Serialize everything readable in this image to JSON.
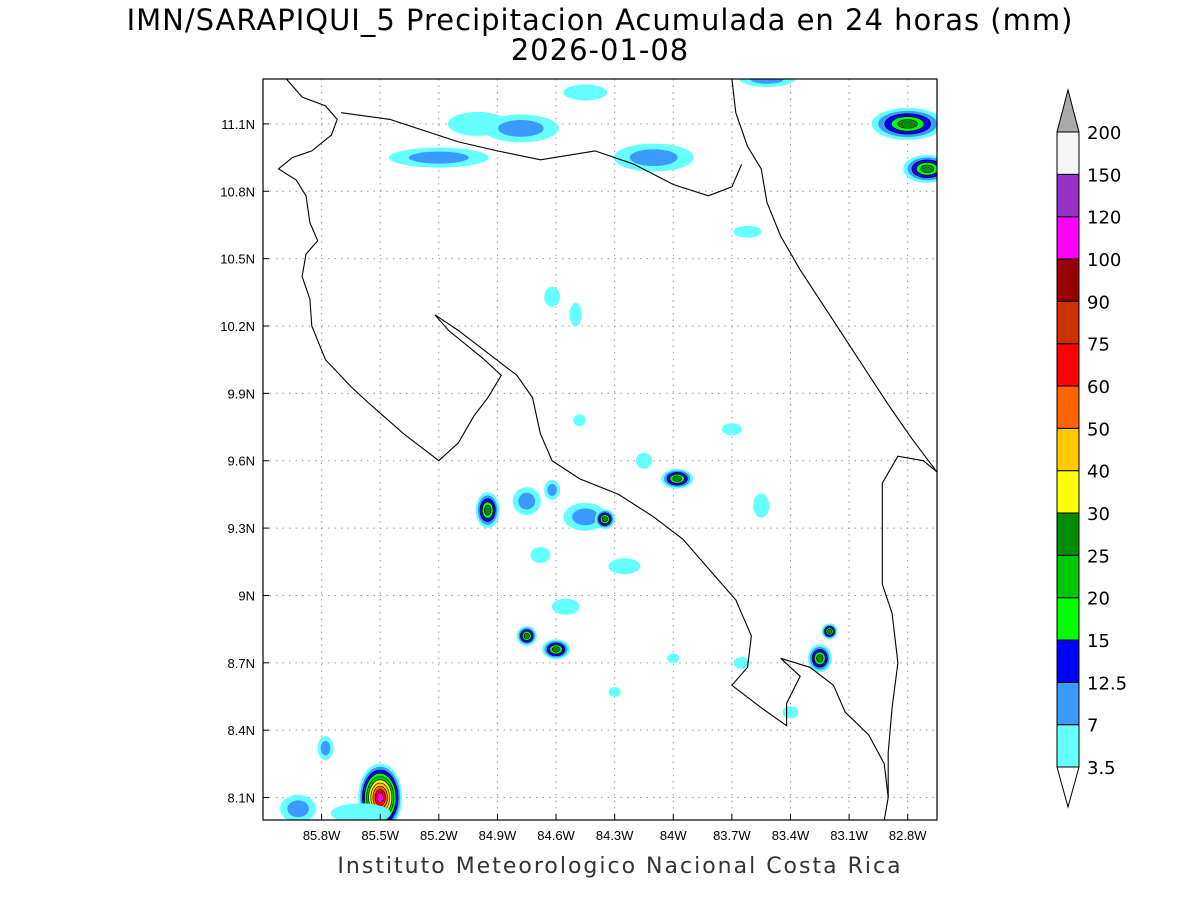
{
  "title": {
    "line1": "IMN/SARAPIQUI_5 Precipitacion Acumulada en 24 horas (mm)",
    "line2": "2026-01-08"
  },
  "footer": "Instituto Meteorologico Nacional Costa Rica",
  "map": {
    "lon_range": [
      -86.1,
      -82.65
    ],
    "lat_range": [
      8.0,
      11.3
    ],
    "grid": "dotted",
    "lat_ticks": [
      {
        "value": 11.1,
        "label": "11.1N"
      },
      {
        "value": 10.8,
        "label": "10.8N"
      },
      {
        "value": 10.5,
        "label": "10.5N"
      },
      {
        "value": 10.2,
        "label": "10.2N"
      },
      {
        "value": 9.9,
        "label": "9.9N"
      },
      {
        "value": 9.6,
        "label": "9.6N"
      },
      {
        "value": 9.3,
        "label": "9.3N"
      },
      {
        "value": 9.0,
        "label": "9N"
      },
      {
        "value": 8.7,
        "label": "8.7N"
      },
      {
        "value": 8.4,
        "label": "8.4N"
      },
      {
        "value": 8.1,
        "label": "8.1N"
      }
    ],
    "lon_ticks": [
      {
        "value": -85.8,
        "label": "85.8W"
      },
      {
        "value": -85.5,
        "label": "85.5W"
      },
      {
        "value": -85.2,
        "label": "85.2W"
      },
      {
        "value": -84.9,
        "label": "84.9W"
      },
      {
        "value": -84.6,
        "label": "84.6W"
      },
      {
        "value": -84.3,
        "label": "84.3W"
      },
      {
        "value": -84.0,
        "label": "84W"
      },
      {
        "value": -83.7,
        "label": "83.7W"
      },
      {
        "value": -83.4,
        "label": "83.4W"
      },
      {
        "value": -83.1,
        "label": "83.1W"
      },
      {
        "value": -82.8,
        "label": "82.8W"
      }
    ],
    "coastline": [
      [
        -85.98,
        11.3
      ],
      [
        -85.9,
        11.22
      ],
      [
        -85.78,
        11.18
      ],
      [
        -85.72,
        11.12
      ],
      [
        -85.75,
        11.05
      ],
      [
        -85.85,
        10.98
      ],
      [
        -85.95,
        10.95
      ],
      [
        -86.02,
        10.9
      ],
      [
        -85.93,
        10.85
      ],
      [
        -85.88,
        10.78
      ],
      [
        -85.86,
        10.66
      ],
      [
        -85.82,
        10.58
      ],
      [
        -85.88,
        10.52
      ],
      [
        -85.9,
        10.42
      ],
      [
        -85.86,
        10.32
      ],
      [
        -85.85,
        10.2
      ],
      [
        -85.78,
        10.05
      ],
      [
        -85.65,
        9.93
      ],
      [
        -85.55,
        9.85
      ],
      [
        -85.38,
        9.72
      ],
      [
        -85.2,
        9.6
      ],
      [
        -85.1,
        9.68
      ],
      [
        -85.02,
        9.8
      ],
      [
        -84.95,
        9.88
      ],
      [
        -84.88,
        9.98
      ],
      [
        -84.98,
        10.06
      ],
      [
        -85.15,
        10.18
      ],
      [
        -85.22,
        10.25
      ],
      [
        -85.1,
        10.18
      ],
      [
        -84.95,
        10.08
      ],
      [
        -84.8,
        9.98
      ],
      [
        -84.72,
        9.88
      ],
      [
        -84.68,
        9.72
      ],
      [
        -84.62,
        9.6
      ],
      [
        -84.48,
        9.52
      ],
      [
        -84.28,
        9.45
      ],
      [
        -84.1,
        9.35
      ],
      [
        -83.95,
        9.25
      ],
      [
        -83.8,
        9.1
      ],
      [
        -83.68,
        8.98
      ],
      [
        -83.6,
        8.82
      ],
      [
        -83.62,
        8.68
      ],
      [
        -83.7,
        8.6
      ],
      [
        -83.55,
        8.5
      ],
      [
        -83.42,
        8.42
      ],
      [
        -83.42,
        8.52
      ],
      [
        -83.35,
        8.64
      ],
      [
        -83.45,
        8.72
      ],
      [
        -83.3,
        8.68
      ],
      [
        -83.18,
        8.6
      ],
      [
        -83.12,
        8.48
      ],
      [
        -83.0,
        8.38
      ],
      [
        -82.92,
        8.25
      ],
      [
        -82.9,
        8.1
      ],
      [
        -82.92,
        8.0
      ]
    ],
    "caribbean_coast": [
      [
        -83.7,
        11.3
      ],
      [
        -83.68,
        11.15
      ],
      [
        -83.62,
        11.0
      ],
      [
        -83.55,
        10.9
      ],
      [
        -83.52,
        10.75
      ],
      [
        -83.45,
        10.6
      ],
      [
        -83.35,
        10.45
      ],
      [
        -83.2,
        10.25
      ],
      [
        -83.05,
        10.05
      ],
      [
        -82.9,
        9.85
      ],
      [
        -82.78,
        9.7
      ],
      [
        -82.65,
        9.55
      ]
    ],
    "north_border": [
      [
        -85.7,
        11.15
      ],
      [
        -85.45,
        11.12
      ],
      [
        -85.1,
        11.02
      ],
      [
        -84.9,
        10.98
      ],
      [
        -84.68,
        10.94
      ],
      [
        -84.4,
        10.98
      ],
      [
        -84.2,
        10.92
      ],
      [
        -84.0,
        10.83
      ],
      [
        -83.82,
        10.78
      ],
      [
        -83.7,
        10.82
      ],
      [
        -83.65,
        10.92
      ]
    ],
    "panama_border": [
      [
        -82.65,
        9.55
      ],
      [
        -82.72,
        9.6
      ],
      [
        -82.85,
        9.62
      ],
      [
        -82.93,
        9.5
      ],
      [
        -82.93,
        9.25
      ],
      [
        -82.93,
        9.05
      ],
      [
        -82.88,
        8.92
      ],
      [
        -82.85,
        8.7
      ],
      [
        -82.88,
        8.5
      ],
      [
        -82.9,
        8.3
      ],
      [
        -82.9,
        8.1
      ]
    ],
    "rain_cells": [
      {
        "lon": -85.5,
        "lat": 8.1,
        "rx": 22,
        "ry": 34,
        "level": "heavy"
      },
      {
        "lon": -85.92,
        "lat": 8.05,
        "rx": 18,
        "ry": 14,
        "level": "med"
      },
      {
        "lon": -85.78,
        "lat": 8.32,
        "rx": 8,
        "ry": 12,
        "level": "med"
      },
      {
        "lon": -85.6,
        "lat": 8.03,
        "rx": 30,
        "ry": 10,
        "level": "light"
      },
      {
        "lon": -84.95,
        "lat": 9.38,
        "rx": 12,
        "ry": 18,
        "level": "strong"
      },
      {
        "lon": -84.75,
        "lat": 9.42,
        "rx": 14,
        "ry": 14,
        "level": "med"
      },
      {
        "lon": -84.62,
        "lat": 9.47,
        "rx": 8,
        "ry": 10,
        "level": "med"
      },
      {
        "lon": -84.45,
        "lat": 9.35,
        "rx": 22,
        "ry": 14,
        "level": "med"
      },
      {
        "lon": -84.35,
        "lat": 9.34,
        "rx": 10,
        "ry": 10,
        "level": "strong"
      },
      {
        "lon": -83.98,
        "lat": 9.52,
        "rx": 16,
        "ry": 10,
        "level": "strong"
      },
      {
        "lon": -84.15,
        "lat": 9.6,
        "rx": 8,
        "ry": 8,
        "level": "light"
      },
      {
        "lon": -84.75,
        "lat": 8.82,
        "rx": 10,
        "ry": 10,
        "level": "strong"
      },
      {
        "lon": -84.6,
        "lat": 8.76,
        "rx": 14,
        "ry": 10,
        "level": "strong"
      },
      {
        "lon": -84.55,
        "lat": 8.95,
        "rx": 14,
        "ry": 8,
        "level": "light"
      },
      {
        "lon": -84.68,
        "lat": 9.18,
        "rx": 10,
        "ry": 8,
        "level": "light"
      },
      {
        "lon": -84.25,
        "lat": 9.13,
        "rx": 16,
        "ry": 8,
        "level": "light"
      },
      {
        "lon": -83.25,
        "lat": 8.72,
        "rx": 12,
        "ry": 14,
        "level": "strong"
      },
      {
        "lon": -83.2,
        "lat": 8.84,
        "rx": 8,
        "ry": 8,
        "level": "strong"
      },
      {
        "lon": -83.55,
        "lat": 9.4,
        "rx": 8,
        "ry": 12,
        "level": "light"
      },
      {
        "lon": -83.7,
        "lat": 9.74,
        "rx": 10,
        "ry": 6,
        "level": "light"
      },
      {
        "lon": -84.48,
        "lat": 9.78,
        "rx": 6,
        "ry": 6,
        "level": "light"
      },
      {
        "lon": -84.62,
        "lat": 10.33,
        "rx": 8,
        "ry": 10,
        "level": "light"
      },
      {
        "lon": -84.5,
        "lat": 10.25,
        "rx": 6,
        "ry": 12,
        "level": "light"
      },
      {
        "lon": -83.62,
        "lat": 10.62,
        "rx": 14,
        "ry": 6,
        "level": "light"
      },
      {
        "lon": -85.0,
        "lat": 11.1,
        "rx": 30,
        "ry": 12,
        "level": "light"
      },
      {
        "lon": -84.78,
        "lat": 11.08,
        "rx": 38,
        "ry": 14,
        "level": "med"
      },
      {
        "lon": -85.2,
        "lat": 10.95,
        "rx": 50,
        "ry": 10,
        "level": "med"
      },
      {
        "lon": -84.1,
        "lat": 10.95,
        "rx": 40,
        "ry": 14,
        "level": "med"
      },
      {
        "lon": -84.45,
        "lat": 11.24,
        "rx": 22,
        "ry": 8,
        "level": "light"
      },
      {
        "lon": -83.52,
        "lat": 11.3,
        "rx": 28,
        "ry": 8,
        "level": "med"
      },
      {
        "lon": -82.8,
        "lat": 11.1,
        "rx": 36,
        "ry": 16,
        "level": "strong"
      },
      {
        "lon": -82.7,
        "lat": 10.9,
        "rx": 24,
        "ry": 14,
        "level": "strong"
      },
      {
        "lon": -83.65,
        "lat": 8.7,
        "rx": 8,
        "ry": 6,
        "level": "light"
      },
      {
        "lon": -83.4,
        "lat": 8.48,
        "rx": 8,
        "ry": 6,
        "level": "light"
      },
      {
        "lon": -84.3,
        "lat": 8.57,
        "rx": 6,
        "ry": 5,
        "level": "light"
      },
      {
        "lon": -84.0,
        "lat": 8.72,
        "rx": 6,
        "ry": 5,
        "level": "light"
      }
    ]
  },
  "colorbar": {
    "levels": [
      {
        "label": "3.5",
        "color": "#66ffff"
      },
      {
        "label": "7",
        "color": "#3a9aff"
      },
      {
        "label": "12.5",
        "color": "#0000ff"
      },
      {
        "label": "15",
        "color": "#00ff00"
      },
      {
        "label": "20",
        "color": "#00c800"
      },
      {
        "label": "25",
        "color": "#008c00"
      },
      {
        "label": "30",
        "color": "#ffff00"
      },
      {
        "label": "40",
        "color": "#ffc800"
      },
      {
        "label": "50",
        "color": "#ff6400"
      },
      {
        "label": "60",
        "color": "#ff0000"
      },
      {
        "label": "75",
        "color": "#cc3200"
      },
      {
        "label": "90",
        "color": "#960000"
      },
      {
        "label": "100",
        "color": "#ff00ff"
      },
      {
        "label": "120",
        "color": "#9632c8"
      },
      {
        "label": "150",
        "color": "#f5f5f5"
      },
      {
        "label": "200",
        "color": "#aaaaaa"
      }
    ],
    "under_color": "#ffffff",
    "over_color": "#aaaaaa"
  }
}
